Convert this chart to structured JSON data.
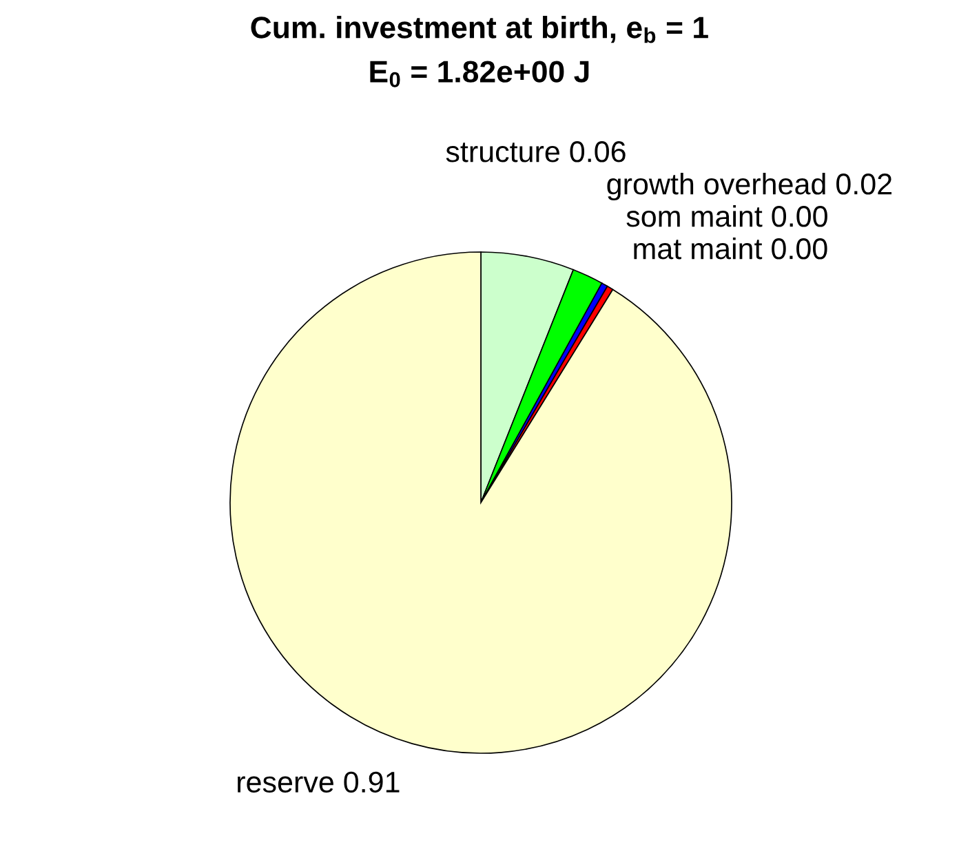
{
  "chart_data": {
    "type": "pie",
    "title": "Cum. investment at birth, e$_{b}$ = 1",
    "subtitle": "E$_{0}$ = 1.82e+00 J",
    "categories": [
      "structure",
      "growth overhead",
      "som maint",
      "mat maint",
      "reserve"
    ],
    "values": [
      0.06,
      0.02,
      0.004,
      0.004,
      0.91
    ],
    "value_labels": [
      "0.06",
      "0.02",
      "0.00",
      "0.00",
      "0.91"
    ],
    "colors": [
      "#ccffcc",
      "#00ff00",
      "#0000ff",
      "#ff0000",
      "#ffffcc"
    ]
  }
}
